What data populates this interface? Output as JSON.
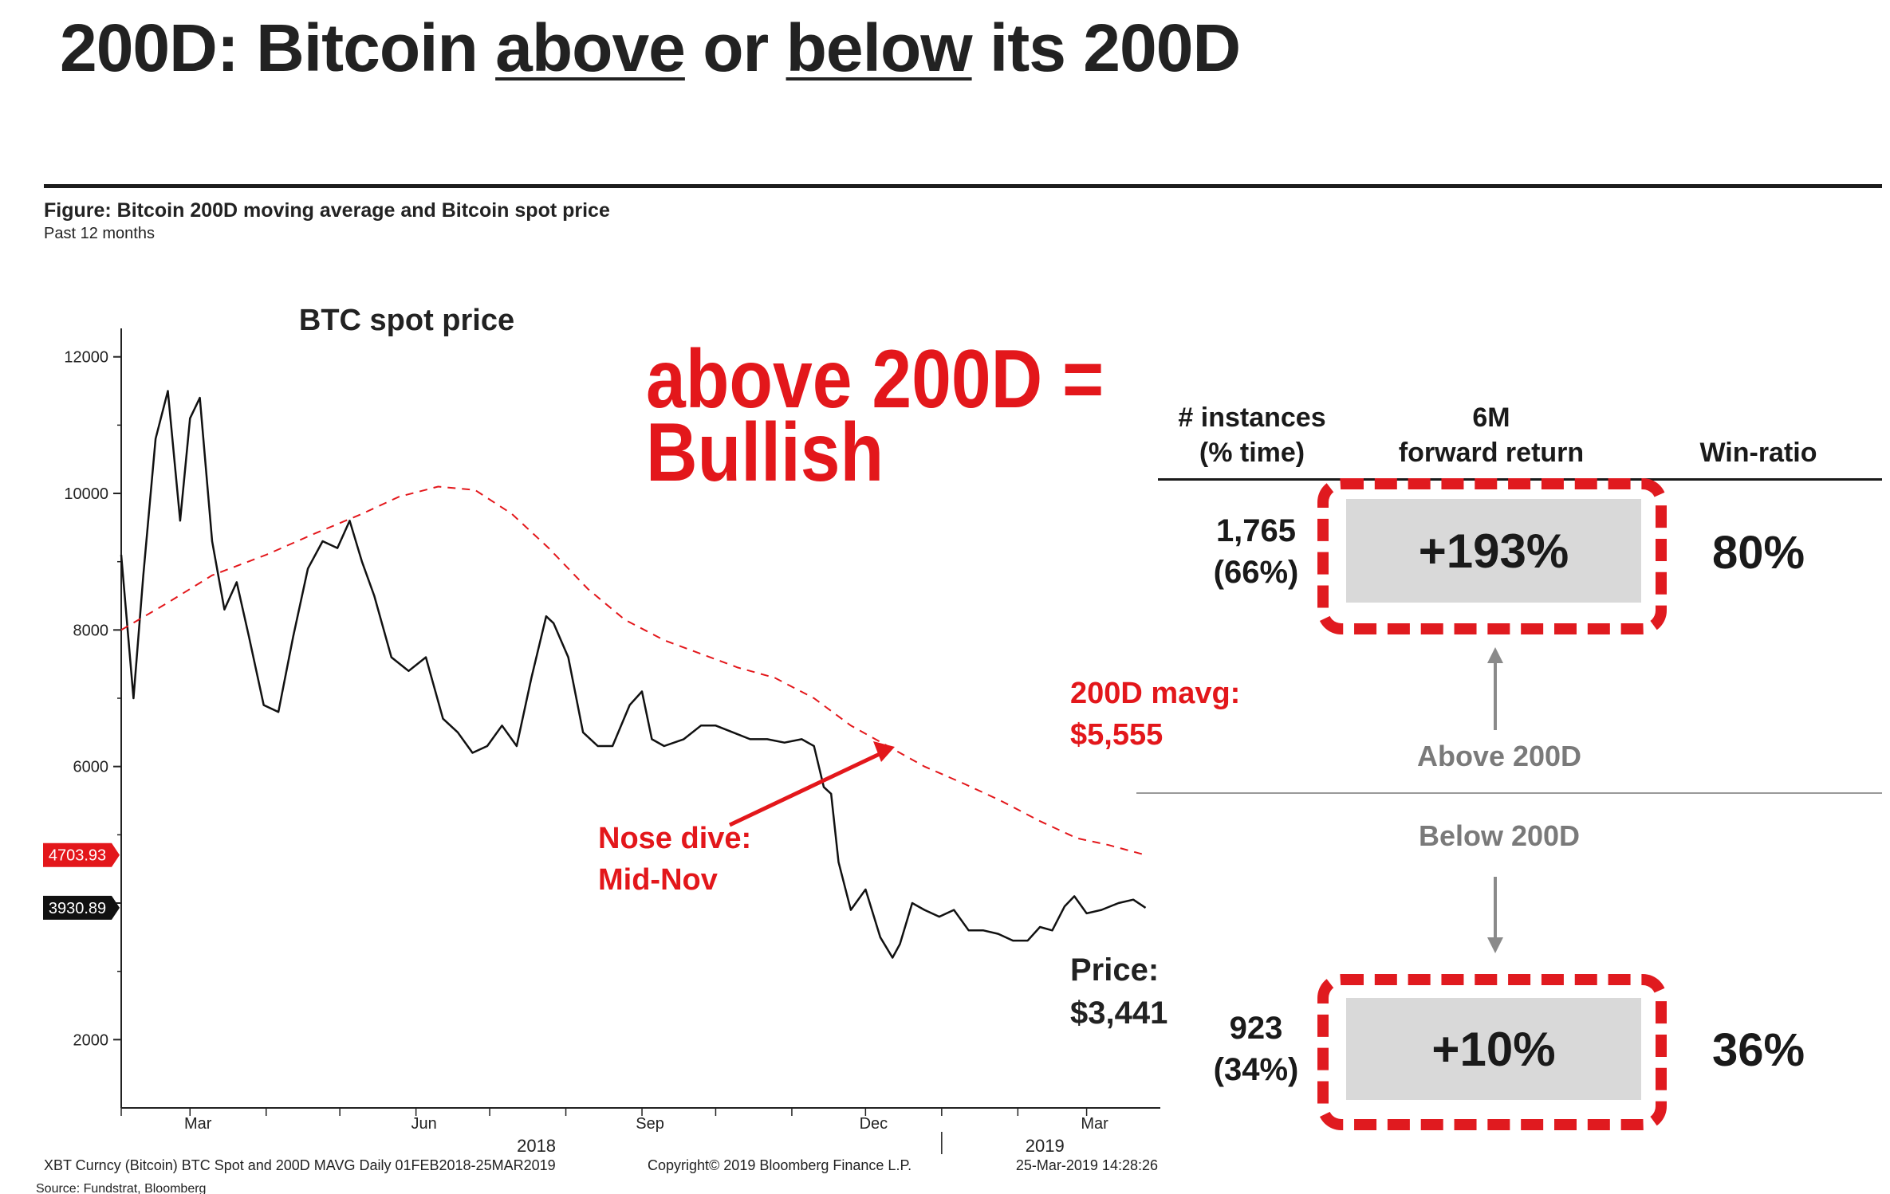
{
  "title": {
    "prefix": "200D: Bitcoin ",
    "above": "above",
    "mid": " or ",
    "below": "below",
    "suffix": " its 200D"
  },
  "figure": {
    "title": "Figure: Bitcoin 200D moving average and Bitcoin spot price",
    "subtitle": "Past 12 months"
  },
  "claim": {
    "line1": "above 200D =",
    "line2": "Bullish"
  },
  "table": {
    "headers": {
      "instances": [
        "# instances",
        "(% time)"
      ],
      "forward": [
        "6M",
        "forward return"
      ],
      "win": "Win-ratio"
    },
    "above": {
      "count": "1,765",
      "pct": "(66%)",
      "ret": "+193%",
      "win": "80%",
      "label": "Above 200D"
    },
    "below": {
      "count": "923",
      "pct": "(34%)",
      "ret": "+10%",
      "win": "36%",
      "label": "Below 200D"
    }
  },
  "colors": {
    "accent_red": "#e3171b",
    "price_line": "#111111",
    "mavg_line": "#e3171b",
    "box_fill": "#d9d9d9"
  },
  "chart_data": {
    "type": "line",
    "title": "BTC spot price",
    "ylim": [
      1000,
      12300
    ],
    "y_ticks": [
      2000,
      4000,
      6000,
      8000,
      10000,
      12000
    ],
    "y_tick_labels": [
      "2000",
      "",
      "6000",
      "8000",
      "10000",
      "12000"
    ],
    "x_ticks": [
      "Mar",
      "Jun",
      "Sep",
      "Dec",
      "Mar"
    ],
    "x_years": [
      "2018",
      "2019"
    ],
    "grid": false,
    "last_value_tags": [
      {
        "label": "4703.93",
        "value": 4703.93,
        "color": "#e3171b"
      },
      {
        "label": "3930.89",
        "value": 3930.89,
        "color": "#111111"
      }
    ],
    "series": [
      {
        "name": "BTC Spot",
        "style": "solid",
        "x": [
          "2018-02-01",
          "2018-02-06",
          "2018-02-10",
          "2018-02-15",
          "2018-02-20",
          "2018-02-25",
          "2018-03-01",
          "2018-03-05",
          "2018-03-10",
          "2018-03-15",
          "2018-03-20",
          "2018-03-25",
          "2018-03-31",
          "2018-04-06",
          "2018-04-12",
          "2018-04-18",
          "2018-04-24",
          "2018-04-30",
          "2018-05-05",
          "2018-05-10",
          "2018-05-15",
          "2018-05-22",
          "2018-05-29",
          "2018-06-05",
          "2018-06-12",
          "2018-06-18",
          "2018-06-24",
          "2018-06-30",
          "2018-07-06",
          "2018-07-12",
          "2018-07-18",
          "2018-07-24",
          "2018-07-27",
          "2018-08-02",
          "2018-08-08",
          "2018-08-14",
          "2018-08-20",
          "2018-08-27",
          "2018-09-01",
          "2018-09-05",
          "2018-09-10",
          "2018-09-18",
          "2018-09-25",
          "2018-10-01",
          "2018-10-08",
          "2018-10-15",
          "2018-10-22",
          "2018-10-29",
          "2018-11-05",
          "2018-11-10",
          "2018-11-14",
          "2018-11-17",
          "2018-11-20",
          "2018-11-25",
          "2018-12-01",
          "2018-12-07",
          "2018-12-12",
          "2018-12-15",
          "2018-12-20",
          "2018-12-25",
          "2018-12-31",
          "2019-01-06",
          "2019-01-12",
          "2019-01-18",
          "2019-01-24",
          "2019-01-30",
          "2019-02-05",
          "2019-02-10",
          "2019-02-15",
          "2019-02-20",
          "2019-02-24",
          "2019-03-01",
          "2019-03-07",
          "2019-03-14",
          "2019-03-20",
          "2019-03-25"
        ],
        "y": [
          9100,
          7000,
          8800,
          10800,
          11500,
          9600,
          11100,
          11400,
          9300,
          8300,
          8700,
          7900,
          6900,
          6800,
          7900,
          8900,
          9300,
          9200,
          9600,
          9000,
          8500,
          7600,
          7400,
          7600,
          6700,
          6500,
          6200,
          6300,
          6600,
          6300,
          7300,
          8200,
          8100,
          7600,
          6500,
          6300,
          6300,
          6900,
          7100,
          6400,
          6300,
          6400,
          6600,
          6600,
          6500,
          6400,
          6400,
          6350,
          6400,
          6300,
          5700,
          5600,
          4600,
          3900,
          4200,
          3500,
          3200,
          3400,
          4000,
          3900,
          3800,
          3900,
          3600,
          3600,
          3550,
          3450,
          3450,
          3650,
          3600,
          3950,
          4100,
          3850,
          3900,
          4000,
          4050,
          3930.89
        ]
      },
      {
        "name": "200D MAVG",
        "style": "dashed",
        "x": [
          "2018-02-01",
          "2018-02-20",
          "2018-03-10",
          "2018-04-01",
          "2018-04-20",
          "2018-05-10",
          "2018-05-25",
          "2018-06-10",
          "2018-06-25",
          "2018-07-10",
          "2018-07-25",
          "2018-08-10",
          "2018-08-25",
          "2018-09-10",
          "2018-09-25",
          "2018-10-10",
          "2018-10-25",
          "2018-11-10",
          "2018-11-25",
          "2018-12-10",
          "2018-12-25",
          "2019-01-10",
          "2019-01-25",
          "2019-02-10",
          "2019-02-25",
          "2019-03-10",
          "2019-03-25"
        ],
        "y": [
          8000,
          8400,
          8800,
          9100,
          9400,
          9700,
          9950,
          10100,
          10050,
          9700,
          9200,
          8600,
          8150,
          7850,
          7650,
          7450,
          7300,
          7000,
          6600,
          6300,
          6000,
          5750,
          5500,
          5200,
          4950,
          4850,
          4703.93
        ]
      }
    ],
    "annotations": {
      "mavg": [
        "200D mavg:",
        "$5,555"
      ],
      "nose": [
        "Nose dive:",
        "Mid-Nov"
      ],
      "price": [
        "Price:",
        "$3,441"
      ]
    },
    "footer": {
      "left": "XBT Curncy (Bitcoin) BTC Spot and 200D MAVG  Daily 01FEB2018-25MAR2019",
      "mid": "Copyright© 2019 Bloomberg Finance L.P.",
      "right": "25-Mar-2019 14:28:26",
      "source": "Source: Fundstrat, Bloomberg"
    }
  }
}
